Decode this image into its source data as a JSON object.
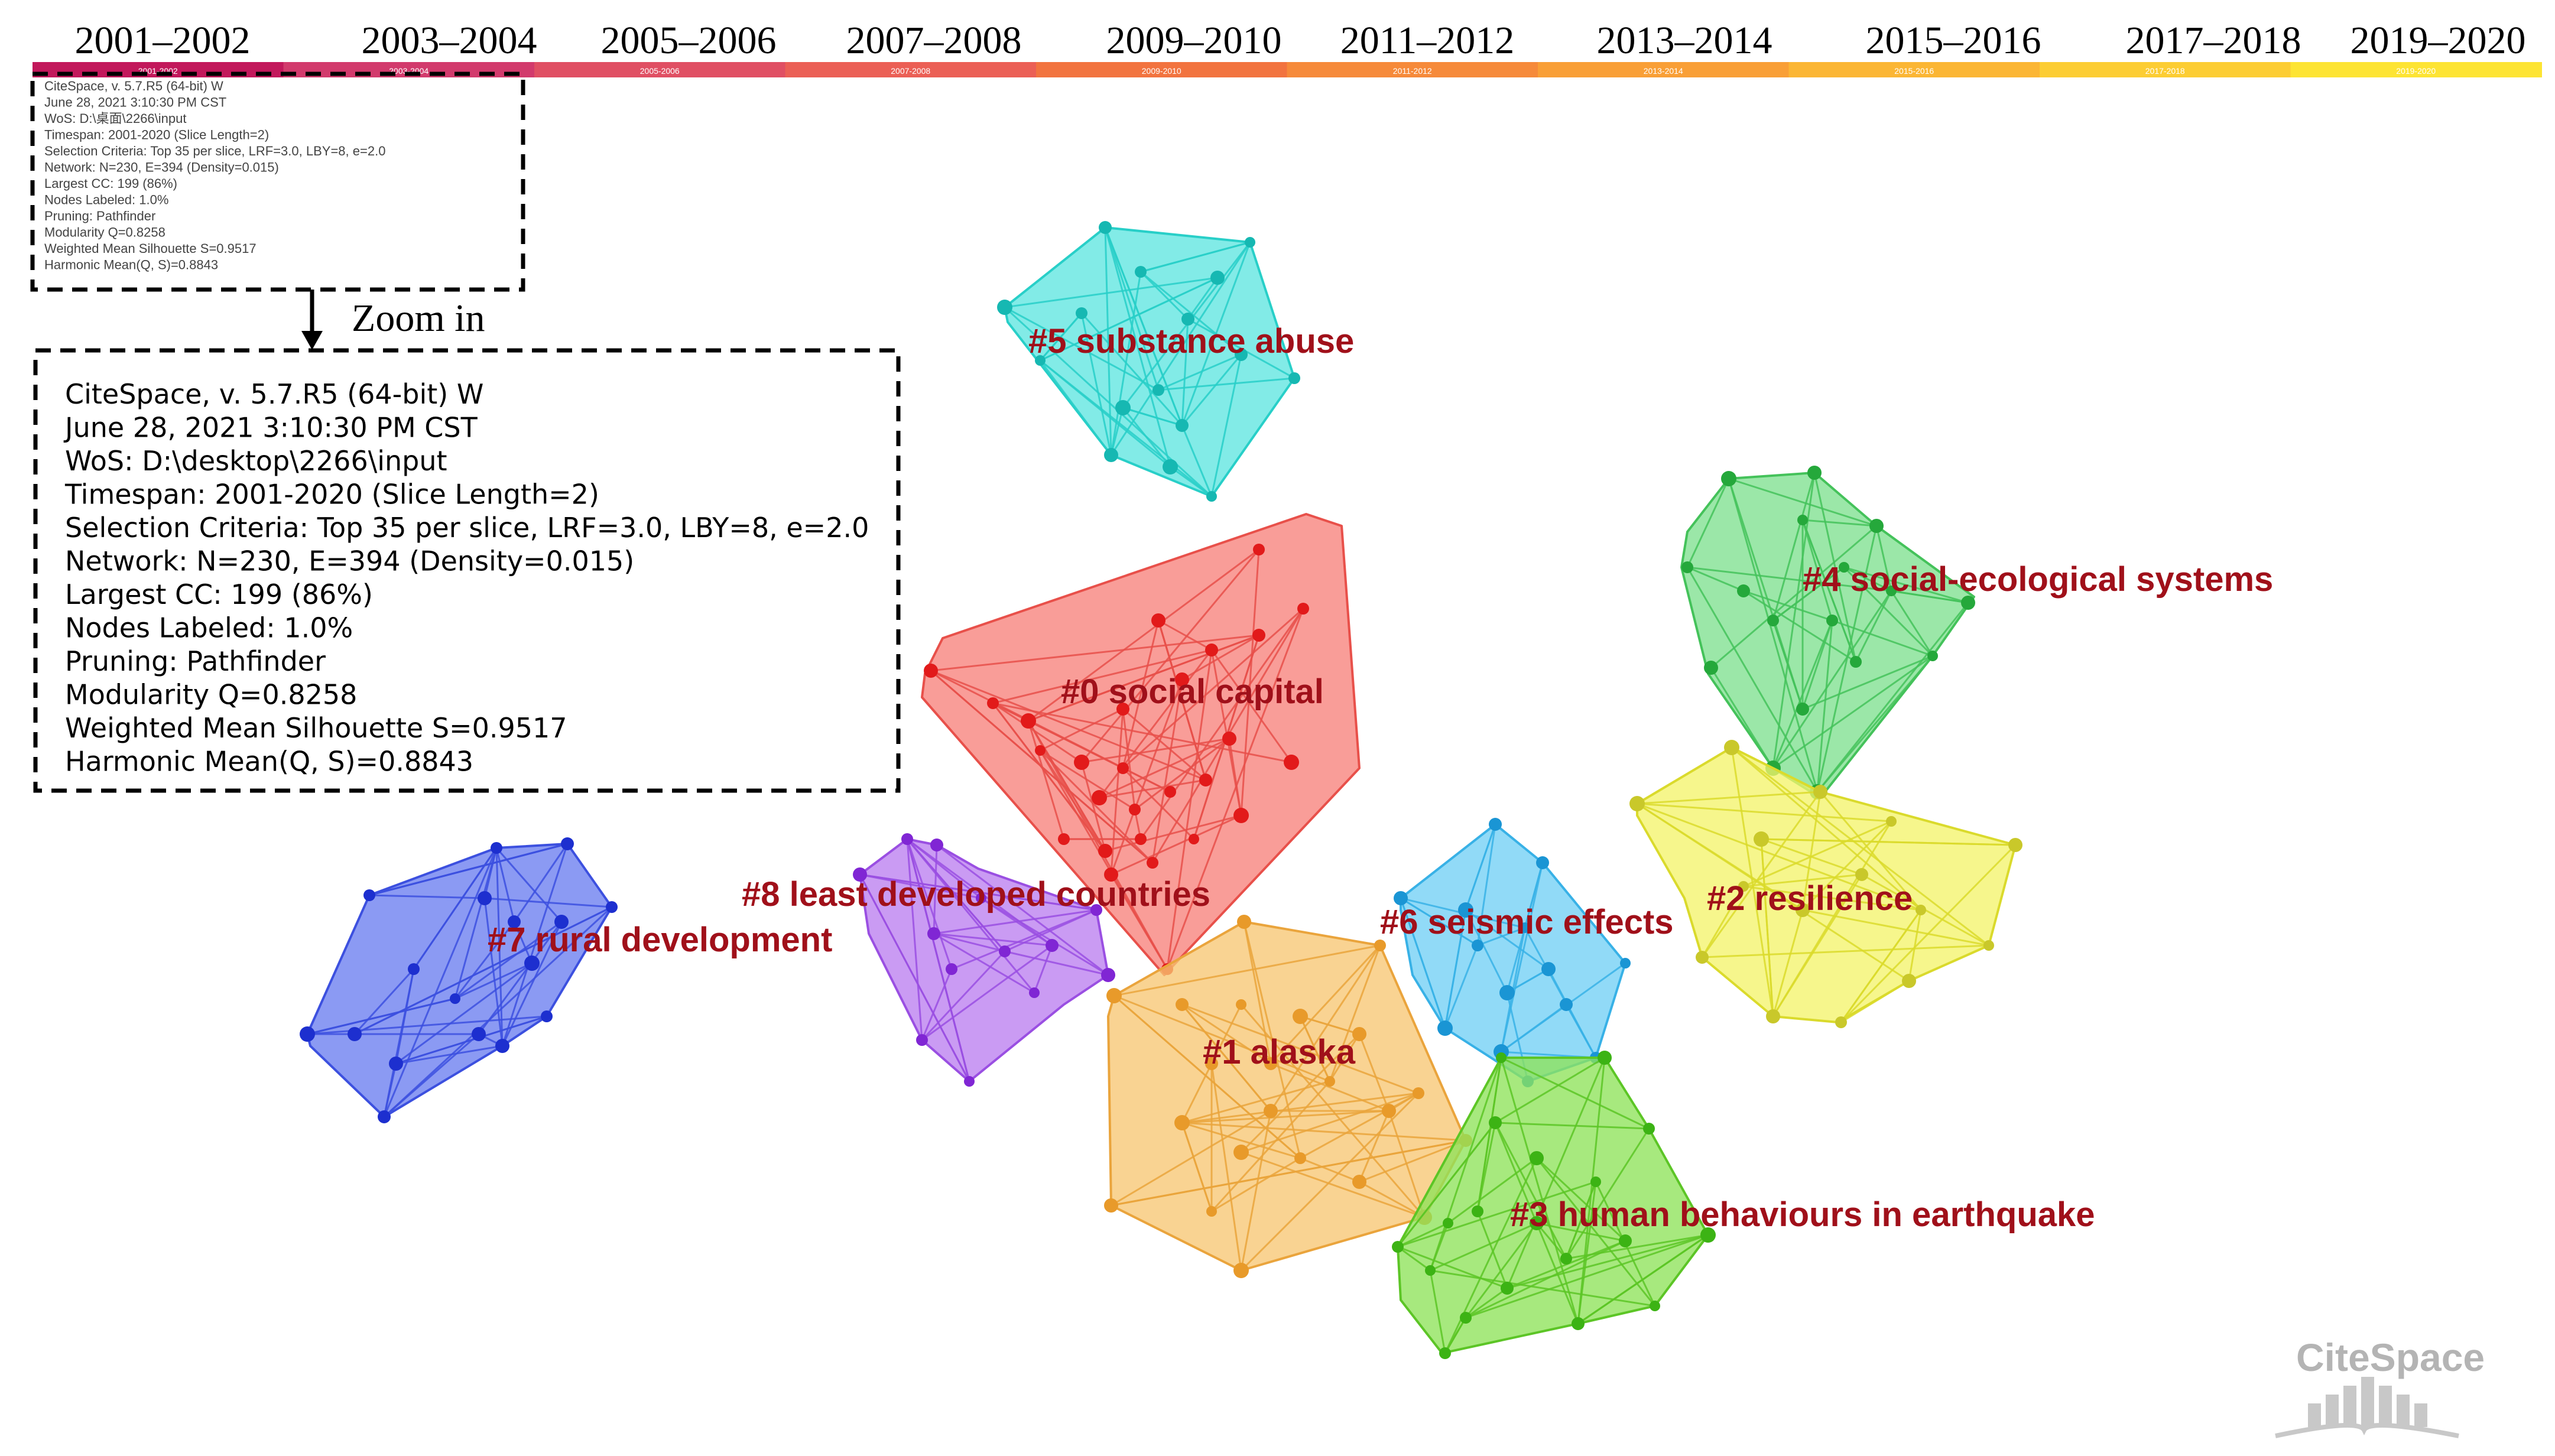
{
  "timeline": {
    "slices": [
      {
        "label": "2001–2002",
        "small": "2001-2002",
        "color": "#c2185b"
      },
      {
        "label": "2003–2004",
        "small": "2003-2004",
        "color": "#d23a6c"
      },
      {
        "label": "2005–2006",
        "small": "2005-2006",
        "color": "#e04f63"
      },
      {
        "label": "2007–2008",
        "small": "2007-2008",
        "color": "#eb5f55"
      },
      {
        "label": "2009–2010",
        "small": "2009-2010",
        "color": "#f2733f"
      },
      {
        "label": "2011–2012",
        "small": "2011-2012",
        "color": "#f68a3a"
      },
      {
        "label": "2013–2014",
        "small": "2013-2014",
        "color": "#f99f36"
      },
      {
        "label": "2015–2016",
        "small": "2015-2016",
        "color": "#fbb634"
      },
      {
        "label": "2017–2018",
        "small": "2017-2018",
        "color": "#fccd33"
      },
      {
        "label": "2019–2020",
        "small": "2019-2020",
        "color": "#fde433"
      }
    ]
  },
  "info_mini": [
    "CiteSpace, v. 5.7.R5 (64-bit) W",
    "June 28, 2021 3:10:30 PM CST",
    "WoS: D:\\桌面\\2266\\input",
    "Timespan: 2001-2020 (Slice Length=2)",
    "Selection Criteria: Top 35 per slice, LRF=3.0, LBY=8, e=2.0",
    "Network: N=230, E=394 (Density=0.015)",
    "Largest CC: 199 (86%)",
    "Nodes Labeled: 1.0%",
    "Pruning: Pathfinder",
    "Modularity Q=0.8258",
    "Weighted Mean Silhouette S=0.9517",
    "Harmonic Mean(Q, S)=0.8843"
  ],
  "zoom_label": "Zoom in",
  "info_zoomed": [
    "CiteSpace, v. 5.7.R5 (64-bit) W",
    "June 28, 2021 3:10:30 PM CST",
    "WoS: D:\\desktop\\2266\\input",
    "Timespan: 2001-2020 (Slice Length=2)",
    "Selection Criteria: Top 35 per slice, LRF=3.0, LBY=8, e=2.0",
    "Network: N=230, E=394 (Density=0.015)",
    "Largest CC: 199 (86%)",
    "Nodes Labeled: 1.0%",
    "Pruning: Pathfinder",
    "Modularity Q=0.8258",
    "Weighted Mean Silhouette S=0.9517",
    "Harmonic Mean(Q, S)=0.8843"
  ],
  "clusters": [
    {
      "id": "c0",
      "label": "#0 social capital",
      "fill": "#f7817b",
      "stroke": "#e8504a",
      "node": "#e21a1a"
    },
    {
      "id": "c1",
      "label": "#1 alaska",
      "fill": "#f7c673",
      "stroke": "#eaa43c",
      "node": "#e89a2a"
    },
    {
      "id": "c2",
      "label": "#2 resilience",
      "fill": "#f4f36b",
      "stroke": "#dada2c",
      "node": "#c9c82a"
    },
    {
      "id": "c3",
      "label": "#3 human behaviours in earthquake",
      "fill": "#8ee35a",
      "stroke": "#5cc526",
      "node": "#3cb314"
    },
    {
      "id": "c4",
      "label": "#4 social-ecological systems",
      "fill": "#7fe08f",
      "stroke": "#44c25a",
      "node": "#25a83b"
    },
    {
      "id": "c5",
      "label": "#5 substance abuse",
      "fill": "#5fe6e0",
      "stroke": "#28cfc8",
      "node": "#16b8b2"
    },
    {
      "id": "c6",
      "label": "#6 seismic effects",
      "fill": "#72cff5",
      "stroke": "#38b1e6",
      "node": "#1a95d4"
    },
    {
      "id": "c7",
      "label": "#7 rural development",
      "fill": "#6a7ef0",
      "stroke": "#3c50df",
      "node": "#1d2fcf"
    },
    {
      "id": "c8",
      "label": "#8 least developed countries",
      "fill": "#bb7ff0",
      "stroke": "#9a4fe2",
      "node": "#8026d4"
    }
  ],
  "logo": {
    "text": "CiteSpace"
  }
}
